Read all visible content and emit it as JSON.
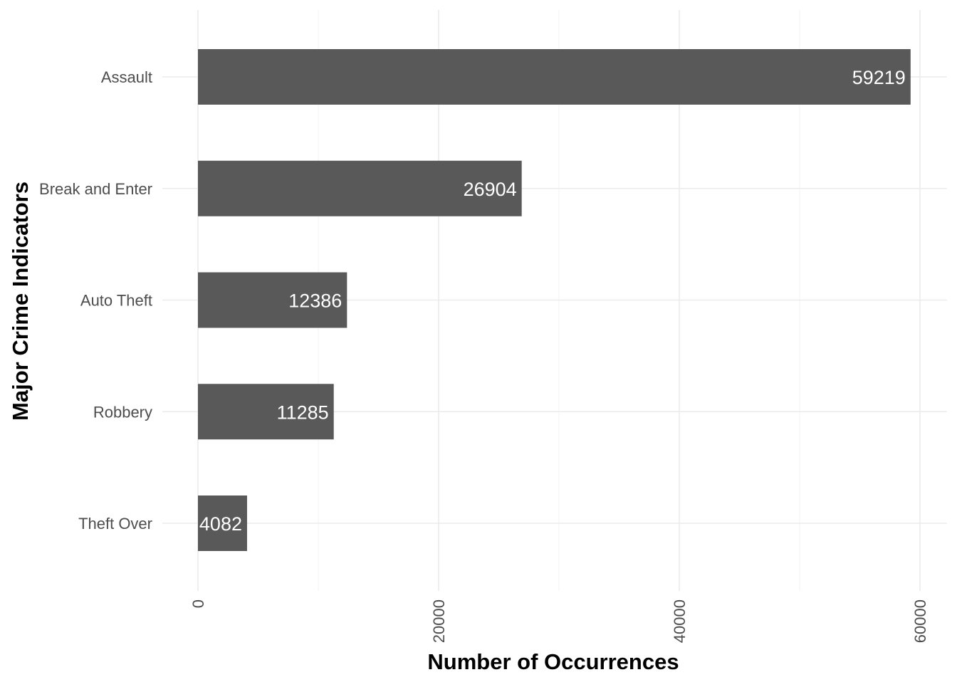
{
  "chart_data": {
    "type": "bar",
    "orientation": "horizontal",
    "categories": [
      "Assault",
      "Break and Enter",
      "Auto Theft",
      "Robbery",
      "Theft Over"
    ],
    "values": [
      59219,
      26904,
      12386,
      11285,
      4082
    ],
    "data_labels": [
      "59219",
      "26904",
      "12386",
      "11285",
      "4082"
    ],
    "xlabel": "Number of Occurrences",
    "ylabel": "Major Crime Indicators",
    "xlim": [
      0,
      62000
    ],
    "x_ticks": [
      0,
      20000,
      40000,
      60000
    ],
    "x_tick_labels": [
      "0",
      "20000",
      "40000",
      "60000"
    ],
    "grid": true,
    "legend": "none",
    "colors": {
      "bar": "#595959",
      "bar_label": "#ffffff",
      "grid": "#ebebeb",
      "tick_label": "#4d4d4d",
      "axis_title": "#000000"
    }
  }
}
